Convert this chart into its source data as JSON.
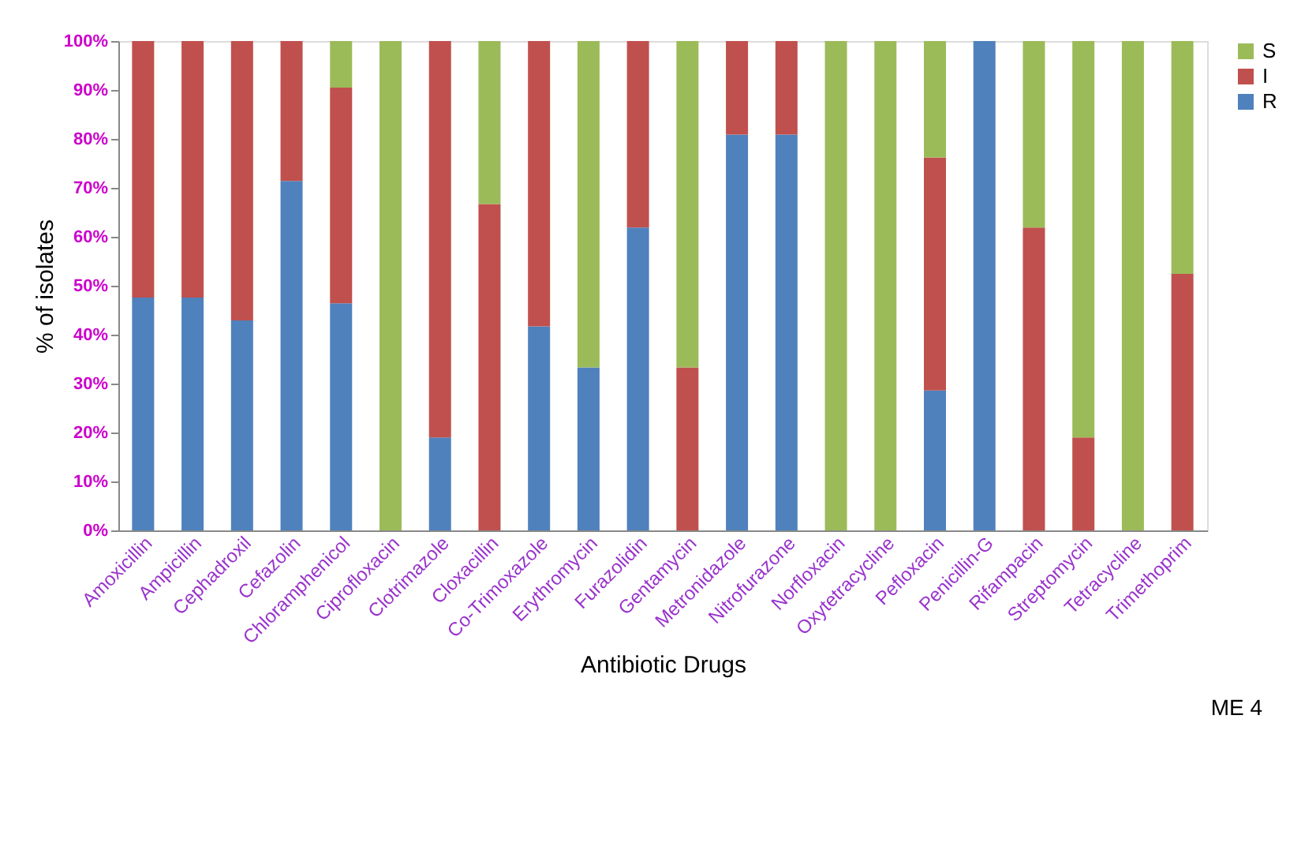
{
  "chart_data": {
    "type": "bar",
    "stacked": true,
    "xlabel": "Antibiotic Drugs",
    "ylabel": "% of isolates",
    "categories": [
      "Amoxicillin",
      "Ampicillin",
      "Cephadroxil",
      "Cefazolin",
      "Chloramphenicol",
      "Ciprofloxacin",
      "Clotrimazole",
      "Cloxacillin",
      "Co-Trimoxazole",
      "Erythromycin",
      "Furazolidin",
      "Gentamycin",
      "Metronidazole",
      "Nitrofurazone",
      "Norfloxacin",
      "Oxytetracycline",
      "Pefloxacin",
      "Penicillin-G",
      "Rifampacin",
      "Streptomycin",
      "Tetracycline",
      "Trimethoprim"
    ],
    "series": [
      {
        "name": "R",
        "color": "#4f81bd",
        "values": [
          47.6,
          47.6,
          42.9,
          71.4,
          46.4,
          0,
          19.0,
          0,
          41.7,
          33.3,
          61.9,
          0,
          80.9,
          80.9,
          0,
          0,
          28.6,
          100,
          0,
          0,
          0,
          0
        ]
      },
      {
        "name": "I",
        "color": "#c0504d",
        "values": [
          52.4,
          52.4,
          57.1,
          28.6,
          44.1,
          0,
          81.0,
          66.7,
          58.3,
          0,
          38.1,
          33.3,
          19.1,
          19.1,
          0,
          0,
          47.6,
          0,
          61.9,
          19.0,
          0,
          52.4
        ]
      },
      {
        "name": "S",
        "color": "#9bbb59",
        "values": [
          0,
          0,
          0,
          0,
          9.5,
          100,
          0,
          33.3,
          0,
          66.7,
          0,
          66.7,
          0,
          0,
          100,
          100,
          23.8,
          0,
          38.1,
          81.0,
          100,
          47.6
        ]
      }
    ],
    "ylim": [
      0,
      100
    ],
    "yticks": [
      {
        "value": 0,
        "label": "0%"
      },
      {
        "value": 10,
        "label": "10%"
      },
      {
        "value": 20,
        "label": "20%"
      },
      {
        "value": 30,
        "label": "30%"
      },
      {
        "value": 40,
        "label": "40%"
      },
      {
        "value": 50,
        "label": "50%"
      },
      {
        "value": 60,
        "label": "60%"
      },
      {
        "value": 70,
        "label": "70%"
      },
      {
        "value": 80,
        "label": "80%"
      },
      {
        "value": 90,
        "label": "90%"
      },
      {
        "value": 100,
        "label": "100%"
      }
    ],
    "grid": false,
    "legend": "right",
    "annotations": [
      "ME 4"
    ]
  }
}
